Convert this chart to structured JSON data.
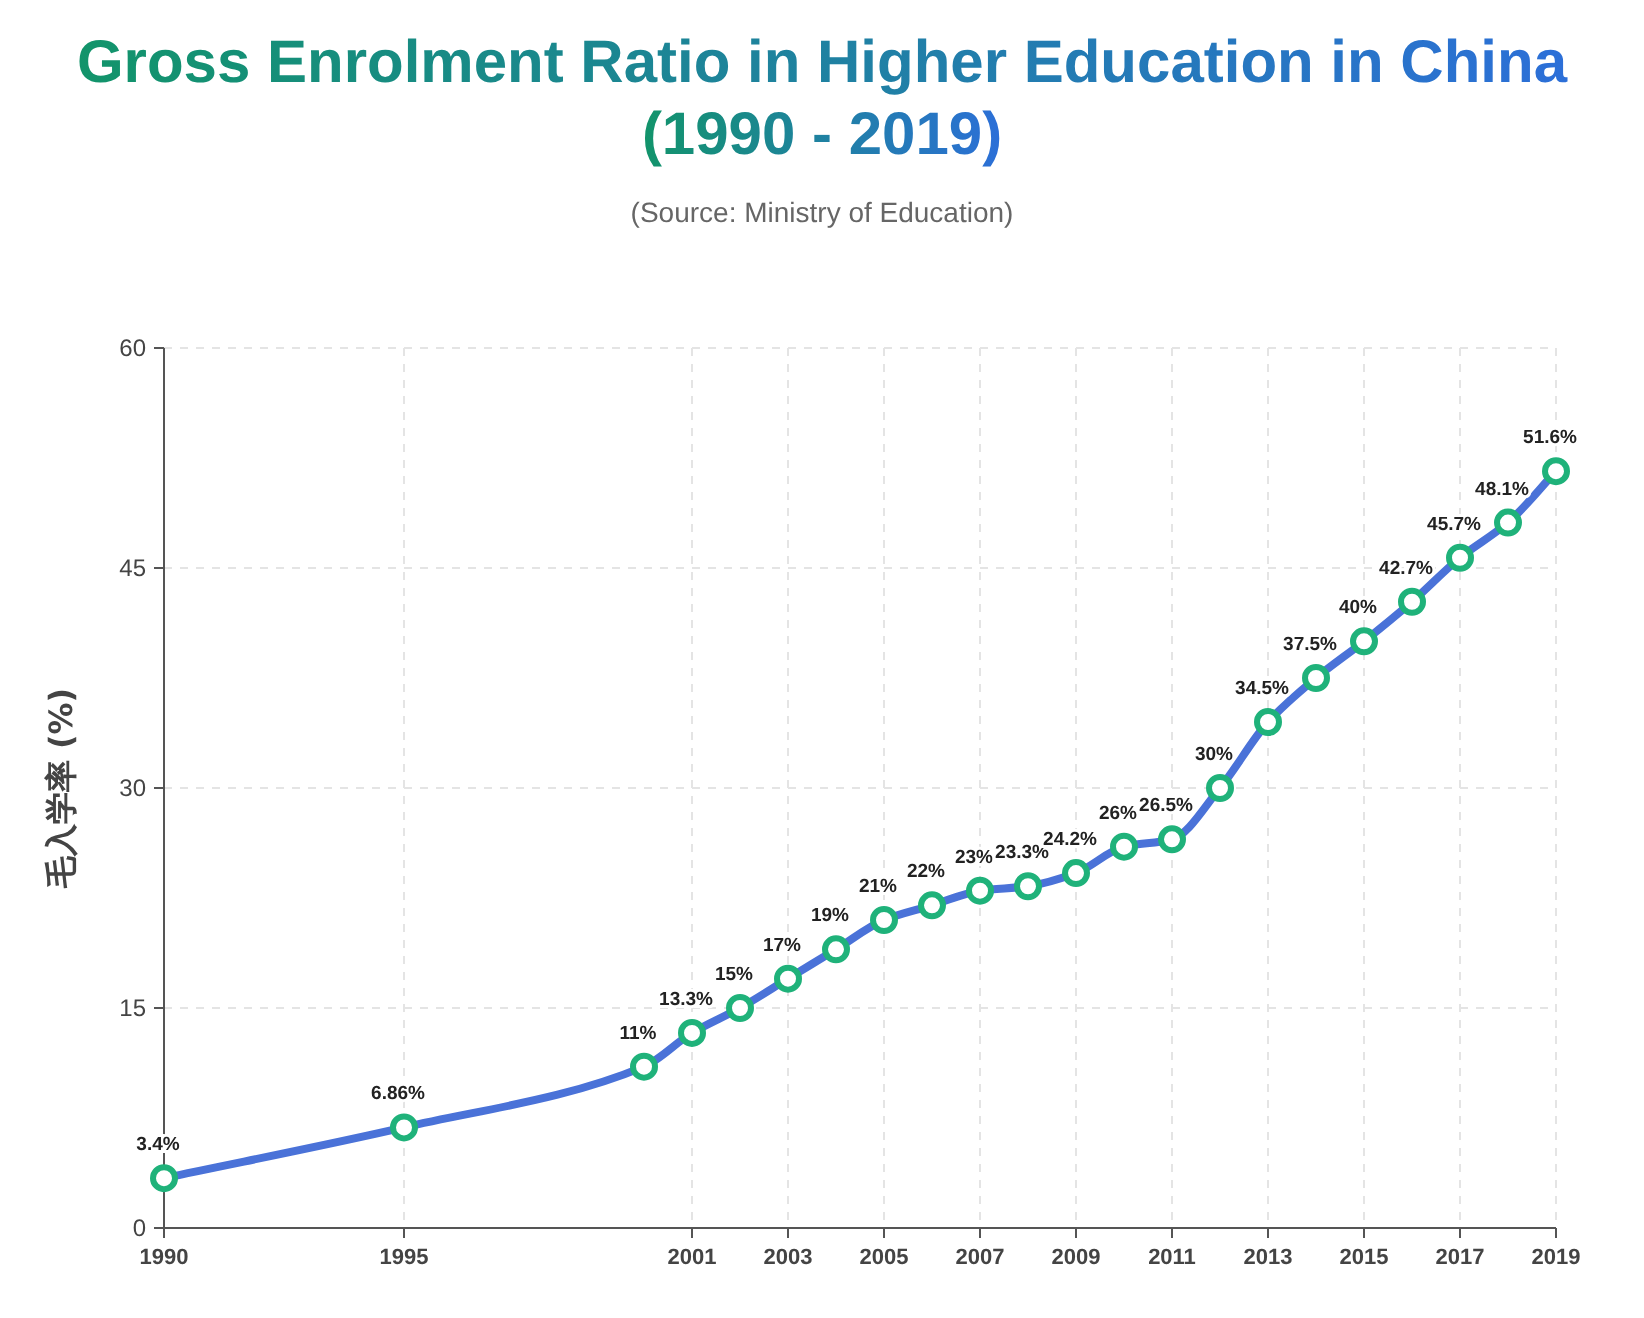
{
  "chart_data": {
    "type": "line",
    "title": "Gross Enrolment Ratio in Higher Education in China (1990 - 2019)",
    "subtitle": "(Source: Ministry of Education)",
    "ylabel": "毛入学率 (%)",
    "x": [
      1990,
      1995,
      2000,
      2001,
      2002,
      2003,
      2004,
      2005,
      2006,
      2007,
      2008,
      2009,
      2010,
      2011,
      2012,
      2013,
      2014,
      2015,
      2016,
      2017,
      2018,
      2019
    ],
    "series": [
      {
        "color": "#4a72d8",
        "values": [
          3.4,
          6.86,
          11,
          13.3,
          15,
          17,
          19,
          21,
          22,
          23,
          23.3,
          24.2,
          26,
          26.5,
          30,
          34.5,
          37.5,
          40,
          42.7,
          45.7,
          48.1,
          51.6
        ],
        "value_labels": [
          "3.4%",
          "6.86%",
          "11%",
          "13.3%",
          "15%",
          "17%",
          "19%",
          "21%",
          "22%",
          "23%",
          "23.3%",
          "24.2%",
          "26%",
          "26.5%",
          "30%",
          "34.5%",
          "37.5%",
          "40%",
          "42.7%",
          "45.7%",
          "48.1%",
          "51.6%"
        ]
      }
    ],
    "xlim": [
      1990,
      2019
    ],
    "xticks": [
      1990,
      1995,
      2001,
      2003,
      2005,
      2007,
      2009,
      2011,
      2013,
      2015,
      2017,
      2019
    ],
    "ylim": [
      0,
      60
    ],
    "yticks": [
      0,
      15,
      30,
      45,
      60
    ],
    "grid": true,
    "marker": "circle",
    "line_style": "solid"
  }
}
